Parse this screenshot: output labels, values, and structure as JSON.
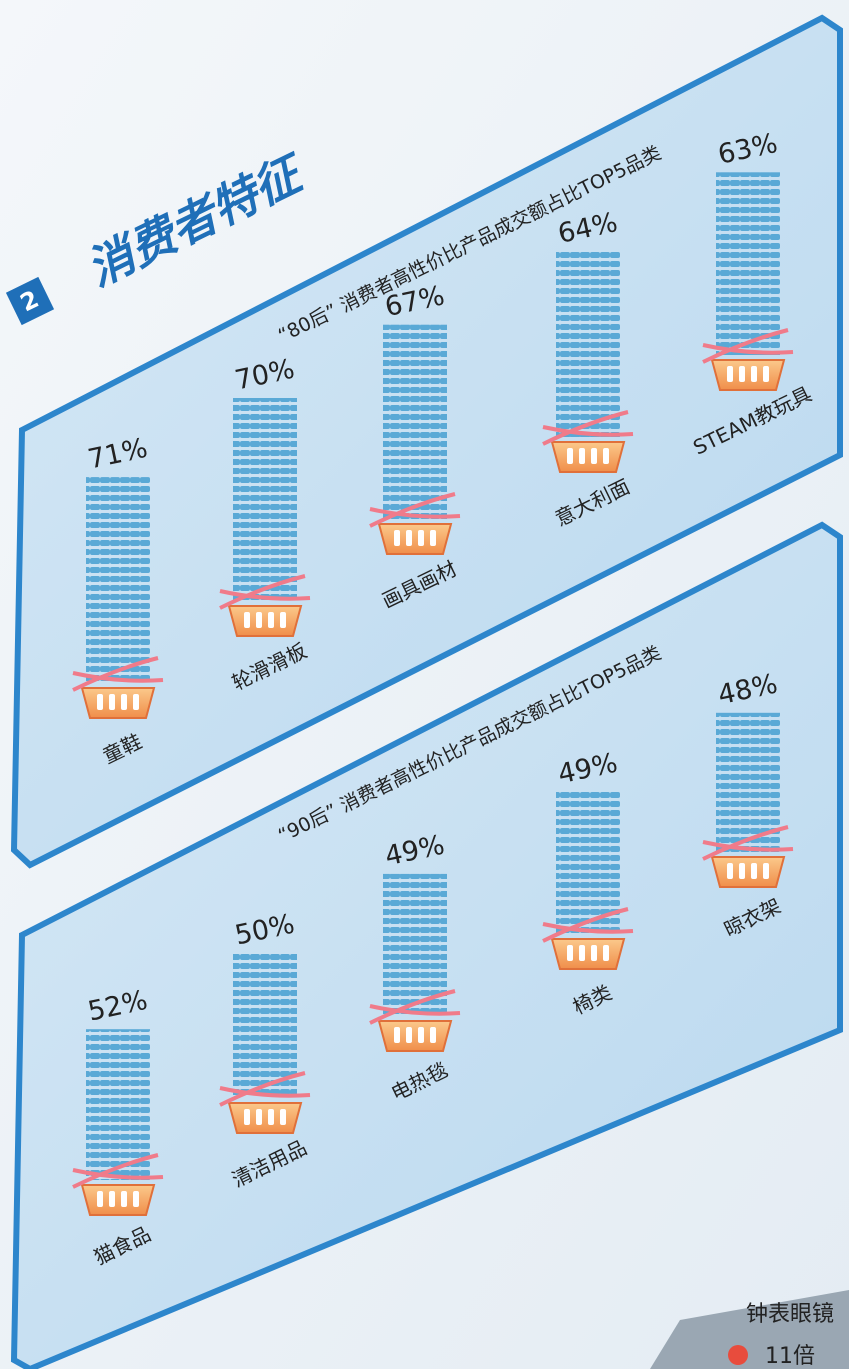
{
  "section": {
    "number": "2",
    "title": "消费者特征"
  },
  "chart_data": [
    {
      "type": "bar",
      "title": "“80后” 消费者高性价比产品成交额占比TOP5品类",
      "categories": [
        "童鞋",
        "轮滑滑板",
        "画具画材",
        "意大利面",
        "STEAM教玩具"
      ],
      "values": [
        71,
        70,
        67,
        64,
        63
      ],
      "value_labels": [
        "71%",
        "70%",
        "67%",
        "64%",
        "63%"
      ],
      "color": "#5aa9d6"
    },
    {
      "type": "bar",
      "title": "“90后” 消费者高性价比产品成交额占比TOP5品类",
      "categories": [
        "猫食品",
        "清洁用品",
        "电热毯",
        "椅类",
        "晾衣架"
      ],
      "values": [
        52,
        50,
        49,
        49,
        48
      ],
      "value_labels": [
        "52%",
        "50%",
        "49%",
        "49%",
        "48%"
      ],
      "color": "#5aa9d6"
    }
  ],
  "footer": {
    "category": "钟表眼镜",
    "multiple": "11倍"
  }
}
